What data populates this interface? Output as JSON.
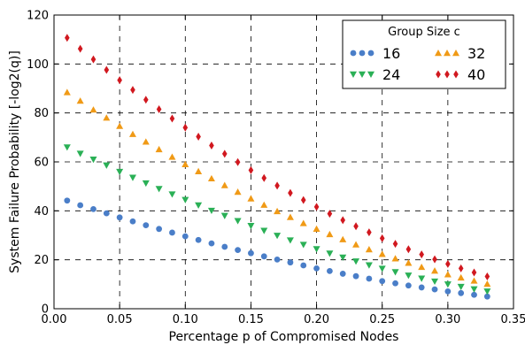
{
  "chart_data": {
    "type": "scatter",
    "xlabel": "Percentage p of Compromised Nodes",
    "ylabel": "System Failure Probability [-log2(q)]",
    "xlim": [
      0.0,
      0.35
    ],
    "ylim": [
      0,
      120
    ],
    "xticks": [
      0.0,
      0.05,
      0.1,
      0.15,
      0.2,
      0.25,
      0.3,
      0.35
    ],
    "xtick_labels": [
      "0.00",
      "0.05",
      "0.10",
      "0.15",
      "0.20",
      "0.25",
      "0.30",
      "0.35"
    ],
    "yticks": [
      0,
      20,
      40,
      60,
      80,
      100,
      120
    ],
    "ytick_labels": [
      "0",
      "20",
      "40",
      "60",
      "80",
      "100",
      "120"
    ],
    "grid": true,
    "legend_title": "Group Size c",
    "legend_position": "top-right",
    "x": [
      0.01,
      0.02,
      0.03,
      0.04,
      0.05,
      0.06,
      0.07,
      0.08,
      0.09,
      0.1,
      0.11,
      0.12,
      0.13,
      0.14,
      0.15,
      0.16,
      0.17,
      0.18,
      0.19,
      0.2,
      0.21,
      0.22,
      0.23,
      0.24,
      0.25,
      0.26,
      0.27,
      0.28,
      0.29,
      0.3,
      0.31,
      0.32,
      0.33
    ],
    "series": [
      {
        "name": "16",
        "marker": "circle",
        "color": "#4a7ec8",
        "values": [
          44.2,
          42.3,
          40.7,
          39.0,
          37.3,
          35.7,
          34.1,
          32.6,
          31.1,
          29.6,
          28.1,
          26.7,
          25.3,
          24.0,
          22.7,
          21.4,
          20.1,
          18.9,
          17.7,
          16.5,
          15.4,
          14.3,
          13.3,
          12.3,
          11.3,
          10.4,
          9.5,
          8.7,
          7.9,
          7.1,
          6.4,
          5.7,
          5.0
        ]
      },
      {
        "name": "24",
        "marker": "triangle-down",
        "color": "#2ab056",
        "values": [
          66.0,
          63.4,
          61.0,
          58.6,
          56.0,
          53.6,
          51.3,
          49.0,
          46.8,
          44.5,
          42.3,
          40.1,
          38.0,
          35.9,
          33.9,
          31.9,
          29.9,
          28.0,
          26.2,
          24.4,
          22.6,
          21.0,
          19.4,
          17.8,
          16.4,
          15.0,
          13.6,
          12.4,
          11.2,
          10.0,
          9.0,
          8.0,
          7.1
        ]
      },
      {
        "name": "32",
        "marker": "triangle-up",
        "color": "#f09a16",
        "values": [
          88.4,
          84.9,
          81.3,
          78.0,
          74.6,
          71.3,
          68.2,
          65.1,
          62.0,
          59.0,
          56.1,
          53.2,
          50.4,
          47.7,
          45.0,
          42.4,
          39.8,
          37.4,
          34.9,
          32.6,
          30.4,
          28.3,
          26.2,
          24.2,
          22.3,
          20.5,
          18.7,
          17.0,
          15.5,
          14.0,
          12.7,
          11.4,
          10.1
        ]
      },
      {
        "name": "40",
        "marker": "diamond",
        "color": "#d1181f",
        "values": [
          110.7,
          106.2,
          101.9,
          97.6,
          93.4,
          89.4,
          85.4,
          81.5,
          77.7,
          74.0,
          70.3,
          66.7,
          63.3,
          59.9,
          56.6,
          53.4,
          50.3,
          47.3,
          44.4,
          41.6,
          38.8,
          36.2,
          33.7,
          31.2,
          28.8,
          26.5,
          24.3,
          22.2,
          20.2,
          18.3,
          16.5,
          14.8,
          13.2
        ]
      }
    ]
  }
}
